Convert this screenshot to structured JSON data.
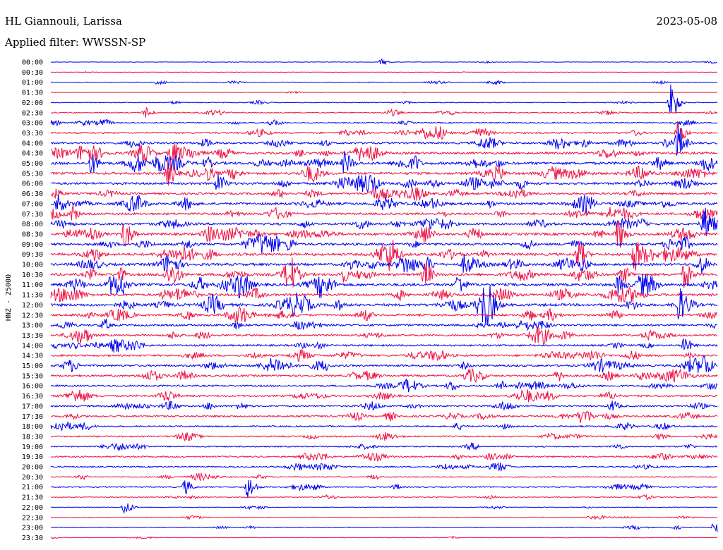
{
  "header": {
    "station_title": "HL Giannouli, Larissa",
    "date": "2023-05-08",
    "filter_label": "Applied filter: WWSSN-SP"
  },
  "colors": {
    "trace_even": "#0000ee",
    "trace_odd": "#ee1144",
    "background": "#ffffff",
    "text": "#000000"
  },
  "chart_data": {
    "type": "helicorder",
    "ylabel": "HNZ - 25000",
    "tick_labels": [
      "00:00",
      "00:30",
      "01:00",
      "01:30",
      "02:00",
      "02:30",
      "03:00",
      "03:30",
      "04:00",
      "04:30",
      "05:00",
      "05:30",
      "06:00",
      "06:30",
      "07:00",
      "07:30",
      "08:00",
      "08:30",
      "09:00",
      "09:30",
      "10:00",
      "10:30",
      "11:00",
      "11:30",
      "12:00",
      "12:30",
      "13:00",
      "13:30",
      "14:00",
      "14:30",
      "15:00",
      "15:30",
      "16:00",
      "16:30",
      "17:00",
      "17:30",
      "18:00",
      "18:30",
      "19:00",
      "19:30",
      "20:00",
      "20:30",
      "21:00",
      "21:30",
      "22:00",
      "22:30",
      "23:00",
      "23:30"
    ],
    "line_duration_minutes": 30,
    "noise_amplitude": [
      0.8,
      0.6,
      1.2,
      0.6,
      1.4,
      2.0,
      2.2,
      3.0,
      3.6,
      4.2,
      5.0,
      4.6,
      4.2,
      3.8,
      4.4,
      4.0,
      4.2,
      4.6,
      4.4,
      4.8,
      4.6,
      4.8,
      5.0,
      4.6,
      4.8,
      4.0,
      3.8,
      3.6,
      3.4,
      3.6,
      3.8,
      3.6,
      3.2,
      3.4,
      3.0,
      3.4,
      2.6,
      2.8,
      2.4,
      2.8,
      2.4,
      2.0,
      2.0,
      1.6,
      1.2,
      1.2,
      1.2,
      1.0
    ],
    "events": [
      {
        "line": 0,
        "pos": 0.495,
        "amp": 4
      },
      {
        "line": 2,
        "pos": 0.16,
        "amp": 5
      },
      {
        "line": 4,
        "pos": 0.93,
        "amp": 30
      },
      {
        "line": 5,
        "pos": 0.14,
        "amp": 8
      },
      {
        "line": 7,
        "pos": 0.94,
        "amp": 16
      },
      {
        "line": 8,
        "pos": 0.94,
        "amp": 25
      },
      {
        "line": 9,
        "pos": 0.18,
        "amp": 14
      },
      {
        "line": 10,
        "pos": 0.06,
        "amp": 14
      },
      {
        "line": 10,
        "pos": 0.44,
        "amp": 16
      },
      {
        "line": 11,
        "pos": 0.175,
        "amp": 18
      },
      {
        "line": 12,
        "pos": 0.25,
        "amp": 14
      },
      {
        "line": 14,
        "pos": 0.01,
        "amp": 14
      },
      {
        "line": 16,
        "pos": 0.98,
        "amp": 18
      },
      {
        "line": 17,
        "pos": 0.11,
        "amp": 20
      },
      {
        "line": 17,
        "pos": 0.85,
        "amp": 22
      },
      {
        "line": 19,
        "pos": 0.51,
        "amp": 12
      },
      {
        "line": 19,
        "pos": 0.79,
        "amp": 20
      },
      {
        "line": 19,
        "pos": 0.875,
        "amp": 22
      },
      {
        "line": 20,
        "pos": 0.62,
        "amp": 12
      },
      {
        "line": 21,
        "pos": 0.56,
        "amp": 18
      },
      {
        "line": 21,
        "pos": 0.95,
        "amp": 18
      },
      {
        "line": 22,
        "pos": 0.28,
        "amp": 12
      },
      {
        "line": 22,
        "pos": 0.61,
        "amp": 14
      },
      {
        "line": 22,
        "pos": 0.85,
        "amp": 12
      },
      {
        "line": 24,
        "pos": 0.65,
        "amp": 22
      },
      {
        "line": 24,
        "pos": 0.94,
        "amp": 20
      },
      {
        "line": 28,
        "pos": 0.95,
        "amp": 10
      },
      {
        "line": 30,
        "pos": 0.98,
        "amp": 10
      },
      {
        "line": 34,
        "pos": 0.84,
        "amp": 8
      },
      {
        "line": 42,
        "pos": 0.2,
        "amp": 10
      },
      {
        "line": 42,
        "pos": 0.295,
        "amp": 16
      },
      {
        "line": 44,
        "pos": 0.11,
        "amp": 10
      },
      {
        "line": 46,
        "pos": 0.995,
        "amp": 10
      }
    ]
  }
}
